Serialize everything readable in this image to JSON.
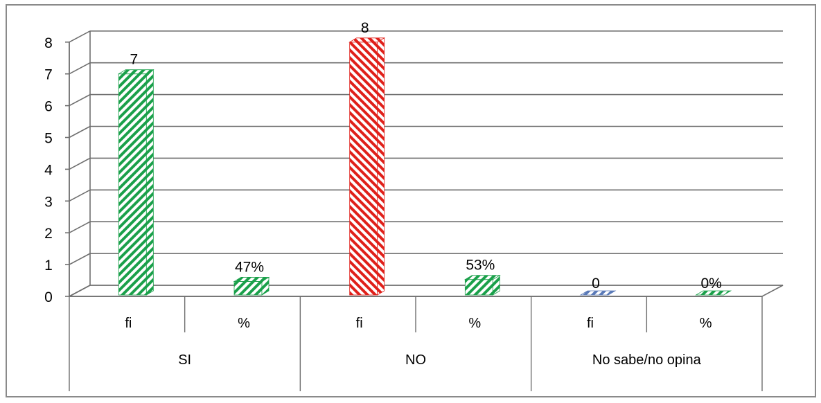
{
  "chart_data": {
    "type": "bar",
    "title": "",
    "xlabel": "",
    "ylabel": "",
    "ylim": [
      0,
      8
    ],
    "yticks": [
      "0",
      "1",
      "2",
      "3",
      "4",
      "5",
      "6",
      "7",
      "8"
    ],
    "grid": true,
    "legend": "none",
    "categories": [
      {
        "group": "SI",
        "sub": "fi",
        "value": 7,
        "label": "7",
        "color": "#1aa04a"
      },
      {
        "group": "SI",
        "sub": "%",
        "value": 0.47,
        "label": "47%",
        "color": "#1aa04a"
      },
      {
        "group": "NO",
        "sub": "fi",
        "value": 8,
        "label": "8",
        "color": "#e0201a"
      },
      {
        "group": "NO",
        "sub": "%",
        "value": 0.53,
        "label": "53%",
        "color": "#1aa04a"
      },
      {
        "group": "No sabe/no opina",
        "sub": "fi",
        "value": 0,
        "label": "0",
        "color": "#5a7ab8"
      },
      {
        "group": "No sabe/no opina",
        "sub": "%",
        "value": 0,
        "label": "0%",
        "color": "#1aa04a"
      }
    ],
    "groups": [
      "SI",
      "NO",
      "No sabe/no opina"
    ]
  }
}
